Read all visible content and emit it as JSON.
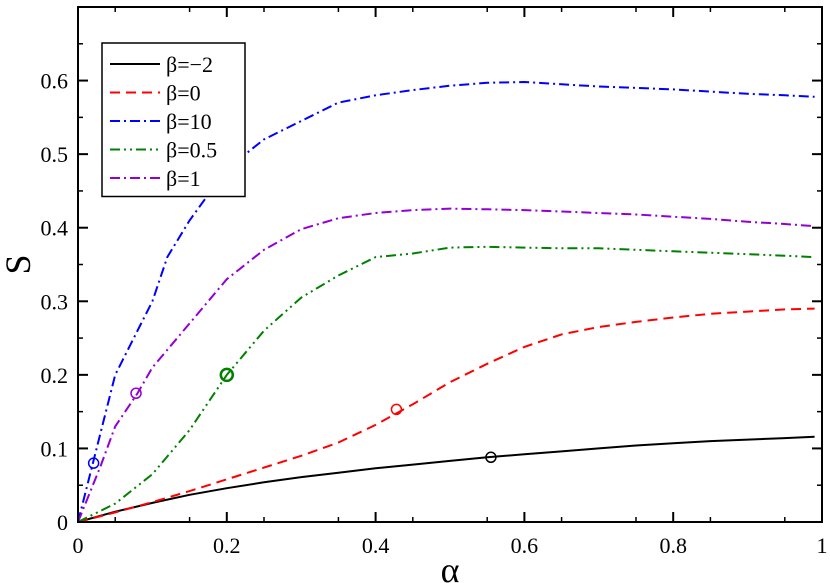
{
  "chart_data": {
    "type": "line",
    "title": "",
    "xlabel": "α",
    "ylabel": "S",
    "xlim": [
      0,
      1
    ],
    "ylim": [
      0,
      0.7
    ],
    "xticks": [
      0,
      0.2,
      0.4,
      0.6,
      0.8,
      1
    ],
    "xtick_labels": [
      "0",
      "0.2",
      "0.4",
      "0.6",
      "0.8",
      "1"
    ],
    "yticks": [
      0,
      0.1,
      0.2,
      0.3,
      0.4,
      0.5,
      0.6
    ],
    "ytick_labels": [
      "0",
      "0.1",
      "0.2",
      "0.3",
      "0.4",
      "0.5",
      "0.6"
    ],
    "grid": false,
    "legend_position": "top-left",
    "series": [
      {
        "name": "β=−2",
        "color": "#000000",
        "dash": "solid",
        "x": [
          0,
          0.05,
          0.1,
          0.15,
          0.2,
          0.25,
          0.3,
          0.35,
          0.4,
          0.45,
          0.5,
          0.55,
          0.6,
          0.65,
          0.7,
          0.75,
          0.8,
          0.85,
          0.9,
          0.95,
          0.99
        ],
        "y": [
          0,
          0.014,
          0.026,
          0.037,
          0.046,
          0.054,
          0.061,
          0.067,
          0.073,
          0.078,
          0.083,
          0.088,
          0.092,
          0.096,
          0.1,
          0.104,
          0.107,
          0.11,
          0.112,
          0.114,
          0.116
        ],
        "marker": {
          "x": 0.555,
          "y": 0.088
        }
      },
      {
        "name": "β=0",
        "color": "#ff0000",
        "dash": "dashed",
        "x": [
          0,
          0.05,
          0.1,
          0.15,
          0.2,
          0.25,
          0.3,
          0.35,
          0.4,
          0.45,
          0.5,
          0.55,
          0.6,
          0.65,
          0.7,
          0.75,
          0.8,
          0.85,
          0.9,
          0.95,
          0.99
        ],
        "y": [
          0,
          0.013,
          0.027,
          0.042,
          0.058,
          0.074,
          0.09,
          0.108,
          0.132,
          0.16,
          0.19,
          0.215,
          0.238,
          0.255,
          0.265,
          0.272,
          0.278,
          0.283,
          0.286,
          0.289,
          0.29
        ],
        "marker": {
          "x": 0.428,
          "y": 0.153
        }
      },
      {
        "name": "β=10",
        "color": "#0000ff",
        "dash": "dashdot",
        "x": [
          0,
          0.02,
          0.05,
          0.08,
          0.1,
          0.12,
          0.15,
          0.2,
          0.25,
          0.3,
          0.35,
          0.4,
          0.45,
          0.5,
          0.55,
          0.6,
          0.65,
          0.7,
          0.75,
          0.8,
          0.85,
          0.9,
          0.95,
          0.99
        ],
        "y": [
          0,
          0.08,
          0.2,
          0.26,
          0.3,
          0.36,
          0.41,
          0.48,
          0.52,
          0.545,
          0.57,
          0.58,
          0.587,
          0.593,
          0.597,
          0.598,
          0.595,
          0.592,
          0.59,
          0.588,
          0.585,
          0.582,
          0.58,
          0.578
        ],
        "marker": {
          "x": 0.021,
          "y": 0.08
        }
      },
      {
        "name": "β=0.5",
        "color": "#008000",
        "dash": "dashdotdot",
        "x": [
          0,
          0.05,
          0.1,
          0.15,
          0.2,
          0.25,
          0.3,
          0.35,
          0.4,
          0.45,
          0.5,
          0.55,
          0.6,
          0.65,
          0.7,
          0.75,
          0.8,
          0.85,
          0.9,
          0.95,
          0.99
        ],
        "y": [
          0,
          0.025,
          0.065,
          0.125,
          0.2,
          0.26,
          0.305,
          0.335,
          0.36,
          0.365,
          0.373,
          0.374,
          0.373,
          0.372,
          0.372,
          0.37,
          0.368,
          0.366,
          0.364,
          0.362,
          0.36
        ],
        "marker": {
          "x": 0.2,
          "y": 0.2
        }
      },
      {
        "name": "β=1",
        "color": "#9400d3",
        "dash": "dashdot",
        "x": [
          0,
          0.03,
          0.05,
          0.08,
          0.1,
          0.15,
          0.2,
          0.25,
          0.3,
          0.35,
          0.4,
          0.45,
          0.5,
          0.55,
          0.6,
          0.65,
          0.7,
          0.75,
          0.8,
          0.85,
          0.9,
          0.95,
          0.99
        ],
        "y": [
          0,
          0.075,
          0.13,
          0.175,
          0.21,
          0.27,
          0.33,
          0.37,
          0.398,
          0.413,
          0.42,
          0.424,
          0.426,
          0.425,
          0.424,
          0.422,
          0.42,
          0.418,
          0.415,
          0.412,
          0.408,
          0.405,
          0.402
        ],
        "marker": {
          "x": 0.078,
          "y": 0.175
        }
      }
    ]
  }
}
